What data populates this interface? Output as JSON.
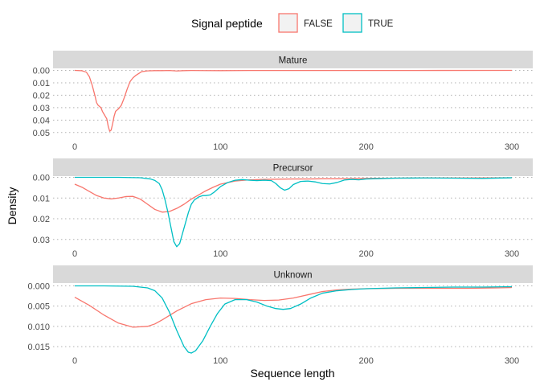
{
  "chart_data": {
    "type": "line",
    "xlabel": "Sequence length",
    "ylabel": "Density",
    "xlim": [
      0,
      300
    ],
    "x_ticks": [
      0,
      100,
      200,
      300
    ],
    "grid": "horizontal dotted",
    "legend": {
      "title": "Signal peptide",
      "placement": "top",
      "entries": [
        {
          "label": "FALSE",
          "color": "#F8766D"
        },
        {
          "label": "TRUE",
          "color": "#00BFC4"
        }
      ]
    },
    "facets": [
      {
        "title": "Mature",
        "ylim": [
          0,
          0.052
        ],
        "y_ticks": [
          0.0,
          0.01,
          0.02,
          0.03,
          0.04,
          0.05
        ],
        "y_tick_labels": [
          "0.00",
          "0.01",
          "0.02",
          "0.03",
          "0.04",
          "0.05"
        ],
        "series": [
          {
            "name": "FALSE",
            "color": "#F8766D",
            "points": [
              [
                0,
                0
              ],
              [
                5,
                0.0003
              ],
              [
                8,
                0.0015
              ],
              [
                10,
                0.005
              ],
              [
                12,
                0.012
              ],
              [
                14,
                0.021
              ],
              [
                15,
                0.026
              ],
              [
                16,
                0.028
              ],
              [
                17,
                0.029
              ],
              [
                18,
                0.03
              ],
              [
                19,
                0.033
              ],
              [
                20,
                0.035
              ],
              [
                21,
                0.037
              ],
              [
                22,
                0.039
              ],
              [
                23,
                0.045
              ],
              [
                24,
                0.049
              ],
              [
                25,
                0.048
              ],
              [
                26,
                0.043
              ],
              [
                27,
                0.037
              ],
              [
                28,
                0.033
              ],
              [
                30,
                0.031
              ],
              [
                32,
                0.028
              ],
              [
                34,
                0.022
              ],
              [
                36,
                0.015
              ],
              [
                38,
                0.009
              ],
              [
                40,
                0.006
              ],
              [
                42,
                0.004
              ],
              [
                44,
                0.0025
              ],
              [
                46,
                0.001
              ],
              [
                50,
                0.0004
              ],
              [
                55,
                0.0002
              ],
              [
                60,
                0.0002
              ],
              [
                65,
                0.0001
              ],
              [
                70,
                0.0005
              ],
              [
                75,
                0.0002
              ],
              [
                80,
                0.0001
              ],
              [
                100,
                0.0002
              ],
              [
                120,
                0.0001
              ],
              [
                150,
                0.0001
              ],
              [
                200,
                0.0001
              ],
              [
                250,
                5e-05
              ],
              [
                300,
                0
              ]
            ]
          }
        ]
      },
      {
        "title": "Precursor",
        "ylim": [
          0,
          0.035
        ],
        "y_ticks": [
          0.0,
          0.01,
          0.02,
          0.03
        ],
        "y_tick_labels": [
          "0.00",
          "0.01",
          "0.02",
          "0.03"
        ],
        "series": [
          {
            "name": "FALSE",
            "color": "#F8766D",
            "points": [
              [
                0,
                0.0033
              ],
              [
                5,
                0.0048
              ],
              [
                10,
                0.0068
              ],
              [
                15,
                0.0088
              ],
              [
                20,
                0.01
              ],
              [
                25,
                0.0104
              ],
              [
                30,
                0.01
              ],
              [
                35,
                0.0093
              ],
              [
                40,
                0.0092
              ],
              [
                45,
                0.0105
              ],
              [
                50,
                0.013
              ],
              [
                55,
                0.0155
              ],
              [
                60,
                0.0168
              ],
              [
                65,
                0.0165
              ],
              [
                70,
                0.015
              ],
              [
                75,
                0.013
              ],
              [
                80,
                0.0105
              ],
              [
                85,
                0.0085
              ],
              [
                90,
                0.0065
              ],
              [
                95,
                0.0048
              ],
              [
                100,
                0.0033
              ],
              [
                110,
                0.0018
              ],
              [
                120,
                0.0012
              ],
              [
                130,
                0.001
              ],
              [
                140,
                0.0009
              ],
              [
                150,
                0.0008
              ],
              [
                160,
                0.0008
              ],
              [
                170,
                0.0007
              ],
              [
                180,
                0.0007
              ],
              [
                200,
                0.0005
              ],
              [
                220,
                0.0004
              ],
              [
                250,
                0.0003
              ],
              [
                270,
                0.0003
              ],
              [
                300,
                0.0002
              ]
            ]
          },
          {
            "name": "TRUE",
            "color": "#00BFC4",
            "points": [
              [
                0,
                0
              ],
              [
                30,
                0
              ],
              [
                45,
                0.0002
              ],
              [
                52,
                0.0008
              ],
              [
                55,
                0.0015
              ],
              [
                58,
                0.003
              ],
              [
                60,
                0.006
              ],
              [
                62,
                0.011
              ],
              [
                64,
                0.017
              ],
              [
                66,
                0.024
              ],
              [
                68,
                0.031
              ],
              [
                70,
                0.0335
              ],
              [
                72,
                0.032
              ],
              [
                74,
                0.027
              ],
              [
                76,
                0.022
              ],
              [
                78,
                0.017
              ],
              [
                80,
                0.013
              ],
              [
                82,
                0.011
              ],
              [
                85,
                0.0095
              ],
              [
                88,
                0.0088
              ],
              [
                90,
                0.0088
              ],
              [
                93,
                0.0085
              ],
              [
                96,
                0.007
              ],
              [
                100,
                0.0045
              ],
              [
                105,
                0.0025
              ],
              [
                110,
                0.0014
              ],
              [
                115,
                0.0011
              ],
              [
                120,
                0.0014
              ],
              [
                125,
                0.0016
              ],
              [
                130,
                0.0014
              ],
              [
                135,
                0.0016
              ],
              [
                138,
                0.003
              ],
              [
                141,
                0.005
              ],
              [
                144,
                0.0062
              ],
              [
                147,
                0.0055
              ],
              [
                150,
                0.0035
              ],
              [
                155,
                0.002
              ],
              [
                160,
                0.0018
              ],
              [
                165,
                0.0022
              ],
              [
                170,
                0.003
              ],
              [
                175,
                0.0032
              ],
              [
                180,
                0.0025
              ],
              [
                185,
                0.0013
              ],
              [
                190,
                0.001
              ],
              [
                195,
                0.0012
              ],
              [
                200,
                0.0008
              ],
              [
                210,
                0.0006
              ],
              [
                220,
                0.0004
              ],
              [
                240,
                0.0003
              ],
              [
                260,
                0.0004
              ],
              [
                280,
                0.0005
              ],
              [
                300,
                0.0002
              ]
            ]
          }
        ]
      },
      {
        "title": "Unknown",
        "ylim": [
          0,
          0.0175
        ],
        "y_ticks": [
          0.0,
          0.005,
          0.01,
          0.015
        ],
        "y_tick_labels": [
          "0.000",
          "0.005",
          "0.010",
          "0.015"
        ],
        "series": [
          {
            "name": "FALSE",
            "color": "#F8766D",
            "points": [
              [
                0,
                0.0028
              ],
              [
                10,
                0.0048
              ],
              [
                20,
                0.0072
              ],
              [
                30,
                0.0092
              ],
              [
                40,
                0.0102
              ],
              [
                50,
                0.01
              ],
              [
                55,
                0.0094
              ],
              [
                60,
                0.0084
              ],
              [
                70,
                0.0062
              ],
              [
                80,
                0.0044
              ],
              [
                90,
                0.0034
              ],
              [
                100,
                0.003
              ],
              [
                110,
                0.0031
              ],
              [
                120,
                0.0034
              ],
              [
                130,
                0.0036
              ],
              [
                140,
                0.0035
              ],
              [
                150,
                0.003
              ],
              [
                160,
                0.0022
              ],
              [
                170,
                0.0014
              ],
              [
                180,
                0.001
              ],
              [
                190,
                0.0008
              ],
              [
                200,
                0.0007
              ],
              [
                220,
                0.0006
              ],
              [
                250,
                0.0006
              ],
              [
                270,
                0.0006
              ],
              [
                290,
                0.0005
              ],
              [
                300,
                0.0004
              ]
            ]
          },
          {
            "name": "TRUE",
            "color": "#00BFC4",
            "points": [
              [
                0,
                0
              ],
              [
                20,
                0
              ],
              [
                40,
                0.0001
              ],
              [
                50,
                0.0005
              ],
              [
                55,
                0.0012
              ],
              [
                60,
                0.003
              ],
              [
                65,
                0.0065
              ],
              [
                70,
                0.011
              ],
              [
                75,
                0.015
              ],
              [
                78,
                0.0164
              ],
              [
                80,
                0.0166
              ],
              [
                83,
                0.016
              ],
              [
                88,
                0.0135
              ],
              [
                93,
                0.01
              ],
              [
                98,
                0.0068
              ],
              [
                103,
                0.0045
              ],
              [
                110,
                0.0034
              ],
              [
                118,
                0.0034
              ],
              [
                125,
                0.004
              ],
              [
                132,
                0.005
              ],
              [
                138,
                0.0056
              ],
              [
                143,
                0.0058
              ],
              [
                148,
                0.0056
              ],
              [
                155,
                0.0045
              ],
              [
                162,
                0.003
              ],
              [
                170,
                0.0018
              ],
              [
                180,
                0.0012
              ],
              [
                190,
                0.0009
              ],
              [
                200,
                0.0007
              ],
              [
                220,
                0.0005
              ],
              [
                240,
                0.0004
              ],
              [
                260,
                0.0003
              ],
              [
                280,
                0.0003
              ],
              [
                300,
                0.0002
              ]
            ]
          }
        ]
      }
    ]
  }
}
